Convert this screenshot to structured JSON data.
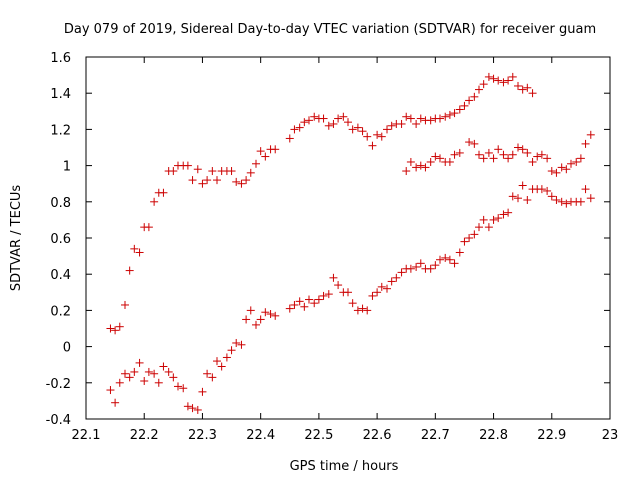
{
  "chart_data": {
    "type": "scatter",
    "title": "Day 079 of 2019, Sidereal Day-to-day VTEC variation (SDTVAR) for receiver guam",
    "xlabel": "GPS time / hours",
    "ylabel": "SDTVAR / TECUs",
    "xlim": [
      22.1,
      23.0
    ],
    "ylim": [
      -0.4,
      1.6
    ],
    "xticks": [
      "22.1",
      "22.2",
      "22.3",
      "22.4",
      "22.5",
      "22.6",
      "22.7",
      "22.8",
      "22.9",
      "23"
    ],
    "yticks": [
      "-0.4",
      "-0.2",
      "0",
      "0.2",
      "0.4",
      "0.6",
      "0.8",
      "1",
      "1.2",
      "1.4",
      "1.6"
    ],
    "marker": "+",
    "color": "#cc0000",
    "grid": false,
    "legend": "none",
    "series": [
      {
        "name": "series-1",
        "points": [
          [
            22.142,
            0.1
          ],
          [
            22.15,
            0.09
          ],
          [
            22.158,
            0.11
          ],
          [
            22.167,
            0.23
          ],
          [
            22.175,
            0.42
          ],
          [
            22.183,
            0.54
          ],
          [
            22.192,
            0.52
          ],
          [
            22.2,
            0.66
          ],
          [
            22.208,
            0.66
          ],
          [
            22.217,
            0.8
          ],
          [
            22.225,
            0.85
          ],
          [
            22.233,
            0.85
          ],
          [
            22.242,
            0.97
          ],
          [
            22.25,
            0.97
          ],
          [
            22.258,
            1.0
          ],
          [
            22.267,
            1.0
          ],
          [
            22.275,
            1.0
          ],
          [
            22.283,
            0.92
          ],
          [
            22.292,
            0.98
          ],
          [
            22.3,
            0.9
          ],
          [
            22.308,
            0.92
          ],
          [
            22.317,
            0.97
          ],
          [
            22.325,
            0.92
          ],
          [
            22.333,
            0.97
          ],
          [
            22.342,
            0.97
          ],
          [
            22.35,
            0.97
          ],
          [
            22.358,
            0.91
          ],
          [
            22.367,
            0.9
          ],
          [
            22.375,
            0.92
          ],
          [
            22.383,
            0.96
          ],
          [
            22.392,
            1.01
          ],
          [
            22.4,
            1.08
          ],
          [
            22.408,
            1.05
          ],
          [
            22.417,
            1.09
          ],
          [
            22.425,
            1.09
          ],
          [
            22.45,
            1.15
          ],
          [
            22.458,
            1.2
          ],
          [
            22.467,
            1.21
          ],
          [
            22.475,
            1.24
          ],
          [
            22.483,
            1.25
          ],
          [
            22.492,
            1.27
          ],
          [
            22.5,
            1.26
          ],
          [
            22.508,
            1.26
          ],
          [
            22.517,
            1.22
          ],
          [
            22.525,
            1.23
          ],
          [
            22.533,
            1.26
          ],
          [
            22.542,
            1.27
          ],
          [
            22.55,
            1.24
          ],
          [
            22.558,
            1.2
          ],
          [
            22.567,
            1.21
          ],
          [
            22.575,
            1.19
          ],
          [
            22.583,
            1.16
          ],
          [
            22.592,
            1.11
          ],
          [
            22.6,
            1.17
          ],
          [
            22.608,
            1.16
          ],
          [
            22.617,
            1.2
          ],
          [
            22.625,
            1.22
          ],
          [
            22.633,
            1.23
          ],
          [
            22.642,
            1.23
          ],
          [
            22.65,
            1.27
          ],
          [
            22.658,
            1.26
          ],
          [
            22.667,
            1.23
          ],
          [
            22.675,
            1.26
          ],
          [
            22.683,
            1.25
          ],
          [
            22.692,
            1.25
          ],
          [
            22.7,
            1.26
          ],
          [
            22.708,
            1.26
          ],
          [
            22.717,
            1.27
          ],
          [
            22.725,
            1.28
          ],
          [
            22.733,
            1.29
          ],
          [
            22.742,
            1.31
          ],
          [
            22.75,
            1.33
          ],
          [
            22.758,
            1.36
          ],
          [
            22.767,
            1.38
          ],
          [
            22.775,
            1.42
          ],
          [
            22.783,
            1.45
          ],
          [
            22.792,
            1.49
          ],
          [
            22.8,
            1.48
          ],
          [
            22.808,
            1.47
          ],
          [
            22.817,
            1.46
          ],
          [
            22.825,
            1.47
          ],
          [
            22.833,
            1.49
          ],
          [
            22.842,
            1.44
          ],
          [
            22.85,
            1.42
          ],
          [
            22.858,
            1.43
          ],
          [
            22.867,
            1.4
          ]
        ]
      },
      {
        "name": "series-2",
        "points": [
          [
            22.142,
            -0.24
          ],
          [
            22.15,
            -0.31
          ],
          [
            22.158,
            -0.2
          ],
          [
            22.167,
            -0.15
          ],
          [
            22.175,
            -0.17
          ],
          [
            22.183,
            -0.14
          ],
          [
            22.192,
            -0.09
          ],
          [
            22.2,
            -0.19
          ],
          [
            22.208,
            -0.14
          ],
          [
            22.217,
            -0.15
          ],
          [
            22.225,
            -0.2
          ],
          [
            22.233,
            -0.11
          ],
          [
            22.242,
            -0.14
          ],
          [
            22.25,
            -0.17
          ],
          [
            22.258,
            -0.22
          ],
          [
            22.267,
            -0.23
          ],
          [
            22.275,
            -0.33
          ],
          [
            22.283,
            -0.34
          ],
          [
            22.292,
            -0.35
          ],
          [
            22.3,
            -0.25
          ],
          [
            22.308,
            -0.15
          ],
          [
            22.317,
            -0.17
          ],
          [
            22.325,
            -0.08
          ],
          [
            22.333,
            -0.11
          ],
          [
            22.342,
            -0.06
          ],
          [
            22.35,
            -0.02
          ],
          [
            22.358,
            0.02
          ],
          [
            22.367,
            0.01
          ],
          [
            22.375,
            0.15
          ],
          [
            22.383,
            0.2
          ],
          [
            22.392,
            0.12
          ],
          [
            22.4,
            0.15
          ],
          [
            22.408,
            0.19
          ],
          [
            22.417,
            0.18
          ],
          [
            22.425,
            0.17
          ],
          [
            22.45,
            0.21
          ],
          [
            22.458,
            0.23
          ],
          [
            22.467,
            0.25
          ],
          [
            22.475,
            0.22
          ],
          [
            22.483,
            0.26
          ],
          [
            22.492,
            0.24
          ],
          [
            22.5,
            0.26
          ],
          [
            22.508,
            0.28
          ],
          [
            22.517,
            0.29
          ],
          [
            22.525,
            0.38
          ],
          [
            22.533,
            0.34
          ],
          [
            22.542,
            0.3
          ],
          [
            22.55,
            0.3
          ],
          [
            22.558,
            0.24
          ],
          [
            22.567,
            0.2
          ],
          [
            22.575,
            0.21
          ],
          [
            22.583,
            0.2
          ],
          [
            22.592,
            0.28
          ],
          [
            22.6,
            0.3
          ],
          [
            22.608,
            0.33
          ],
          [
            22.617,
            0.32
          ],
          [
            22.625,
            0.36
          ],
          [
            22.633,
            0.38
          ],
          [
            22.642,
            0.41
          ],
          [
            22.65,
            0.43
          ],
          [
            22.658,
            0.43
          ],
          [
            22.667,
            0.44
          ],
          [
            22.675,
            0.46
          ],
          [
            22.683,
            0.43
          ],
          [
            22.692,
            0.43
          ],
          [
            22.7,
            0.45
          ],
          [
            22.708,
            0.48
          ],
          [
            22.717,
            0.49
          ],
          [
            22.725,
            0.48
          ],
          [
            22.733,
            0.46
          ],
          [
            22.742,
            0.52
          ],
          [
            22.75,
            0.58
          ],
          [
            22.758,
            0.6
          ],
          [
            22.767,
            0.62
          ],
          [
            22.775,
            0.66
          ],
          [
            22.783,
            0.7
          ],
          [
            22.792,
            0.66
          ],
          [
            22.8,
            0.7
          ],
          [
            22.808,
            0.71
          ],
          [
            22.817,
            0.73
          ],
          [
            22.825,
            0.74
          ],
          [
            22.833,
            0.83
          ],
          [
            22.842,
            0.82
          ],
          [
            22.85,
            0.89
          ],
          [
            22.858,
            0.81
          ],
          [
            22.867,
            0.87
          ],
          [
            22.875,
            0.87
          ],
          [
            22.883,
            0.87
          ],
          [
            22.892,
            0.86
          ],
          [
            22.9,
            0.83
          ],
          [
            22.908,
            0.81
          ],
          [
            22.917,
            0.8
          ],
          [
            22.925,
            0.79
          ],
          [
            22.933,
            0.8
          ],
          [
            22.942,
            0.8
          ],
          [
            22.95,
            0.8
          ],
          [
            22.958,
            0.87
          ],
          [
            22.967,
            0.82
          ]
        ]
      },
      {
        "name": "series-3",
        "points": [
          [
            22.65,
            0.97
          ],
          [
            22.658,
            1.02
          ],
          [
            22.667,
            0.99
          ],
          [
            22.675,
            1.0
          ],
          [
            22.683,
            0.99
          ],
          [
            22.692,
            1.02
          ],
          [
            22.7,
            1.05
          ],
          [
            22.708,
            1.04
          ],
          [
            22.717,
            1.02
          ],
          [
            22.725,
            1.02
          ],
          [
            22.733,
            1.06
          ],
          [
            22.742,
            1.07
          ],
          [
            22.758,
            1.13
          ],
          [
            22.767,
            1.12
          ],
          [
            22.775,
            1.06
          ],
          [
            22.783,
            1.04
          ],
          [
            22.792,
            1.07
          ],
          [
            22.8,
            1.04
          ],
          [
            22.808,
            1.09
          ],
          [
            22.817,
            1.06
          ],
          [
            22.825,
            1.04
          ],
          [
            22.833,
            1.06
          ],
          [
            22.842,
            1.1
          ],
          [
            22.85,
            1.09
          ],
          [
            22.858,
            1.07
          ],
          [
            22.867,
            1.02
          ],
          [
            22.875,
            1.05
          ],
          [
            22.883,
            1.06
          ],
          [
            22.892,
            1.04
          ],
          [
            22.9,
            0.97
          ],
          [
            22.908,
            0.96
          ],
          [
            22.917,
            0.99
          ],
          [
            22.925,
            0.98
          ],
          [
            22.933,
            1.01
          ],
          [
            22.942,
            1.02
          ],
          [
            22.95,
            1.04
          ],
          [
            22.958,
            1.12
          ],
          [
            22.967,
            1.17
          ]
        ]
      }
    ]
  }
}
